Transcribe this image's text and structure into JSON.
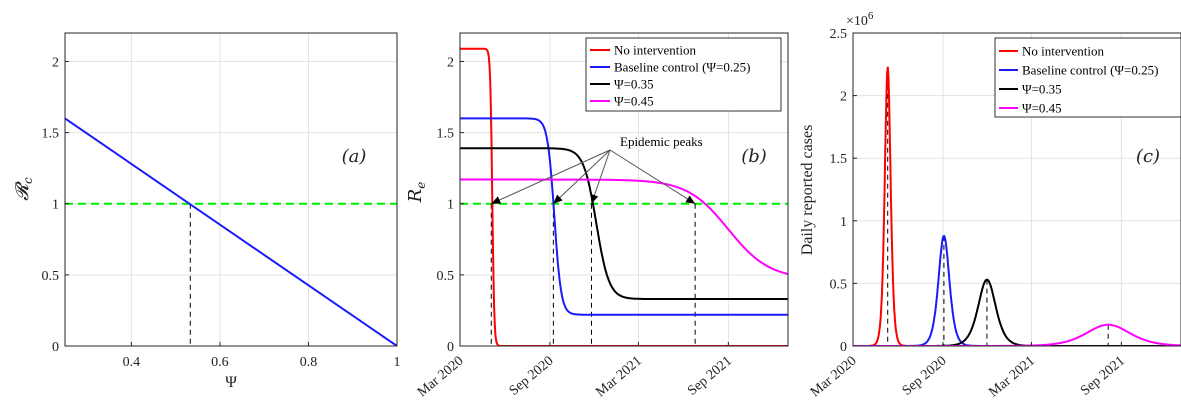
{
  "colors": {
    "red": "#ff0000",
    "blue": "#1a1aff",
    "black": "#000000",
    "magenta": "#ff00ff",
    "green": "#00ee00"
  },
  "chart_data": [
    {
      "panel": "(a)",
      "type": "line",
      "xlabel": "Ψ",
      "ylabel": "𝓡c",
      "xlim": [
        0.25,
        1
      ],
      "ylim": [
        0,
        2.2
      ],
      "xticks": [
        "0.4",
        "0.6",
        "0.8",
        "1"
      ],
      "yticks": [
        "0",
        "0.5",
        "1",
        "1.5",
        "2"
      ],
      "grid": true,
      "series": [
        {
          "color": "#1a1aff",
          "style": "solid",
          "x": [
            0.25,
            1.0
          ],
          "y": [
            1.6,
            0.0
          ]
        }
      ],
      "threshold_line": {
        "y": 1,
        "color": "#00ee00",
        "style": "dashed"
      },
      "drop_lines": [
        {
          "x": 0.533,
          "y": 1.0
        }
      ]
    },
    {
      "panel": "(b)",
      "type": "line",
      "xlabel": "",
      "ylabel": "Re",
      "x_type": "date",
      "xlim": [
        "2020-03-01",
        "2022-01-01"
      ],
      "ylim": [
        0,
        2.2
      ],
      "xticks": [
        "Mar 2020",
        "Sep 2020",
        "Mar 2021",
        "Sep 2021"
      ],
      "yticks": [
        "0",
        "0.5",
        "1",
        "1.5",
        "2"
      ],
      "grid": true,
      "legend_position": "top-right",
      "series": [
        {
          "name": "No intervention",
          "color": "#ff0000",
          "kind": "sigmoid",
          "start": 2.09,
          "end": 0.0,
          "midpoint": "2020-05-06",
          "width_days": 2
        },
        {
          "name": "Baseline control (Ψ=0.25)",
          "color": "#1a1aff",
          "kind": "sigmoid",
          "start": 1.6,
          "end": 0.22,
          "midpoint": "2020-09-10",
          "width_days": 7
        },
        {
          "name": "Ψ=0.35",
          "color": "#000000",
          "kind": "sigmoid",
          "start": 1.39,
          "end": 0.33,
          "midpoint": "2020-12-05",
          "width_days": 13
        },
        {
          "name": "Ψ=0.45",
          "color": "#ff00ff",
          "kind": "sigmoid",
          "start": 1.17,
          "end": 0.47,
          "midpoint": "2021-09-01",
          "width_days": 42
        }
      ],
      "threshold_line": {
        "y": 1,
        "color": "#00ee00",
        "style": "dashed"
      },
      "drop_lines": [
        {
          "x": "2020-05-04",
          "y": 1.0
        },
        {
          "x": "2020-09-08",
          "y": 1.0
        },
        {
          "x": "2020-11-25",
          "y": 1.0
        },
        {
          "x": "2021-06-25",
          "y": 1.0
        }
      ],
      "annotation": {
        "text": "Epidemic peaks",
        "targets": [
          {
            "x": "2020-05-04",
            "y": 1.0
          },
          {
            "x": "2020-09-08",
            "y": 1.0
          },
          {
            "x": "2020-11-25",
            "y": 1.0
          },
          {
            "x": "2021-06-25",
            "y": 1.0
          }
        ]
      }
    },
    {
      "panel": "(c)",
      "type": "line",
      "xlabel": "",
      "ylabel": "Daily reported cases",
      "y_multiplier": "×10^6",
      "x_type": "date",
      "xlim": [
        "2020-03-01",
        "2022-01-01"
      ],
      "ylim": [
        0,
        2.5
      ],
      "xticks": [
        "Mar 2020",
        "Sep 2020",
        "Mar 2021",
        "Sep 2021"
      ],
      "yticks": [
        "0",
        "0.5",
        "1",
        "1.5",
        "2",
        "2.5"
      ],
      "grid": true,
      "legend_position": "top-right",
      "series": [
        {
          "name": "No intervention",
          "color": "#ff0000",
          "kind": "peak",
          "peak_date": "2020-05-11",
          "peak_value": 2.23,
          "width_days": 8
        },
        {
          "name": "Baseline control (Ψ=0.25)",
          "color": "#1a1aff",
          "kind": "peak",
          "peak_date": "2020-09-03",
          "peak_value": 0.88,
          "width_days": 15
        },
        {
          "name": "Ψ=0.35",
          "color": "#000000",
          "kind": "peak",
          "peak_date": "2020-11-30",
          "peak_value": 0.53,
          "width_days": 24
        },
        {
          "name": "Ψ=0.45",
          "color": "#ff00ff",
          "kind": "peak",
          "peak_date": "2021-08-05",
          "peak_value": 0.17,
          "width_days": 60
        }
      ],
      "drop_lines": [
        {
          "x": "2020-05-11",
          "y": 2.23
        },
        {
          "x": "2020-09-03",
          "y": 0.88
        },
        {
          "x": "2020-11-30",
          "y": 0.53
        },
        {
          "x": "2021-08-05",
          "y": 0.17
        }
      ]
    }
  ]
}
